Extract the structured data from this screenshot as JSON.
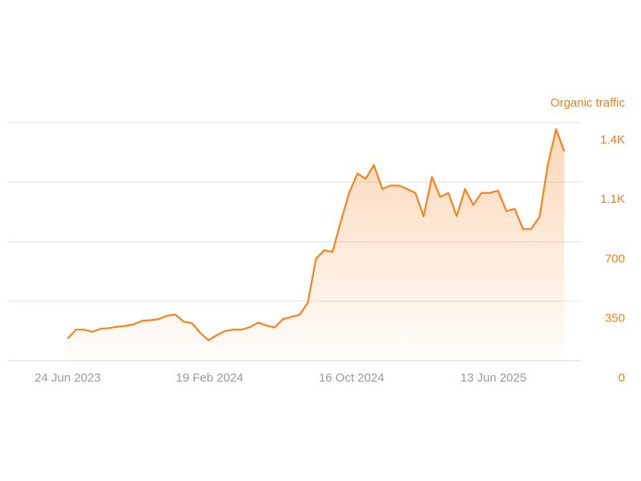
{
  "chart_data": {
    "type": "area",
    "y_axis_title": "Organic traffic",
    "color": "#f5841f",
    "x": [
      "2023-06-24",
      "2023-07-08",
      "2023-07-22",
      "2023-08-05",
      "2023-08-19",
      "2023-09-02",
      "2023-09-16",
      "2023-09-30",
      "2023-10-14",
      "2023-10-28",
      "2023-11-11",
      "2023-11-25",
      "2023-12-09",
      "2023-12-23",
      "2024-01-06",
      "2024-01-20",
      "2024-02-03",
      "2024-02-17",
      "2024-03-02",
      "2024-03-16",
      "2024-03-30",
      "2024-04-13",
      "2024-04-27",
      "2024-05-11",
      "2024-05-25",
      "2024-06-08",
      "2024-06-22",
      "2024-07-06",
      "2024-07-20",
      "2024-08-03",
      "2024-08-17",
      "2024-08-31",
      "2024-09-14",
      "2024-09-28",
      "2024-10-12",
      "2024-10-26",
      "2024-11-09",
      "2024-11-23",
      "2024-12-07",
      "2024-12-21",
      "2025-01-04",
      "2025-01-18",
      "2025-02-01",
      "2025-02-15",
      "2025-03-01",
      "2025-03-15",
      "2025-03-29",
      "2025-04-12",
      "2025-04-26",
      "2025-05-10",
      "2025-05-24",
      "2025-06-07",
      "2025-06-21",
      "2025-07-05",
      "2025-07-19",
      "2025-08-02",
      "2025-08-16",
      "2025-08-30",
      "2025-09-13",
      "2025-09-27",
      "2025-10-11"
    ],
    "values": [
      131,
      183,
      183,
      170,
      188,
      192,
      200,
      205,
      215,
      235,
      238,
      245,
      265,
      272,
      230,
      221,
      165,
      120,
      150,
      175,
      183,
      183,
      197,
      225,
      207,
      195,
      244,
      258,
      270,
      340,
      600,
      650,
      640,
      820,
      987,
      1100,
      1070,
      1150,
      1010,
      1030,
      1030,
      1010,
      987,
      850,
      1081,
      963,
      987,
      850,
      1010,
      916,
      987,
      987,
      1000,
      880,
      893,
      775,
      775,
      846,
      1151,
      1362,
      1231
    ],
    "xlim": [
      "2023-03-15",
      "2025-11-08"
    ],
    "xticks": [
      {
        "value": "2023-06-24",
        "label": "24 Jun 2023"
      },
      {
        "value": "2024-02-19",
        "label": "19 Feb 2024"
      },
      {
        "value": "2024-10-16",
        "label": "16 Oct 2024"
      },
      {
        "value": "2025-06-13",
        "label": "13 Jun 2025"
      }
    ],
    "ylim": [
      0,
      1400
    ],
    "yticks": [
      0,
      350,
      700,
      {
        "value": 1050,
        "label": "1.1K"
      },
      {
        "value": 1400,
        "label": "1.4K"
      }
    ],
    "grid": true
  }
}
